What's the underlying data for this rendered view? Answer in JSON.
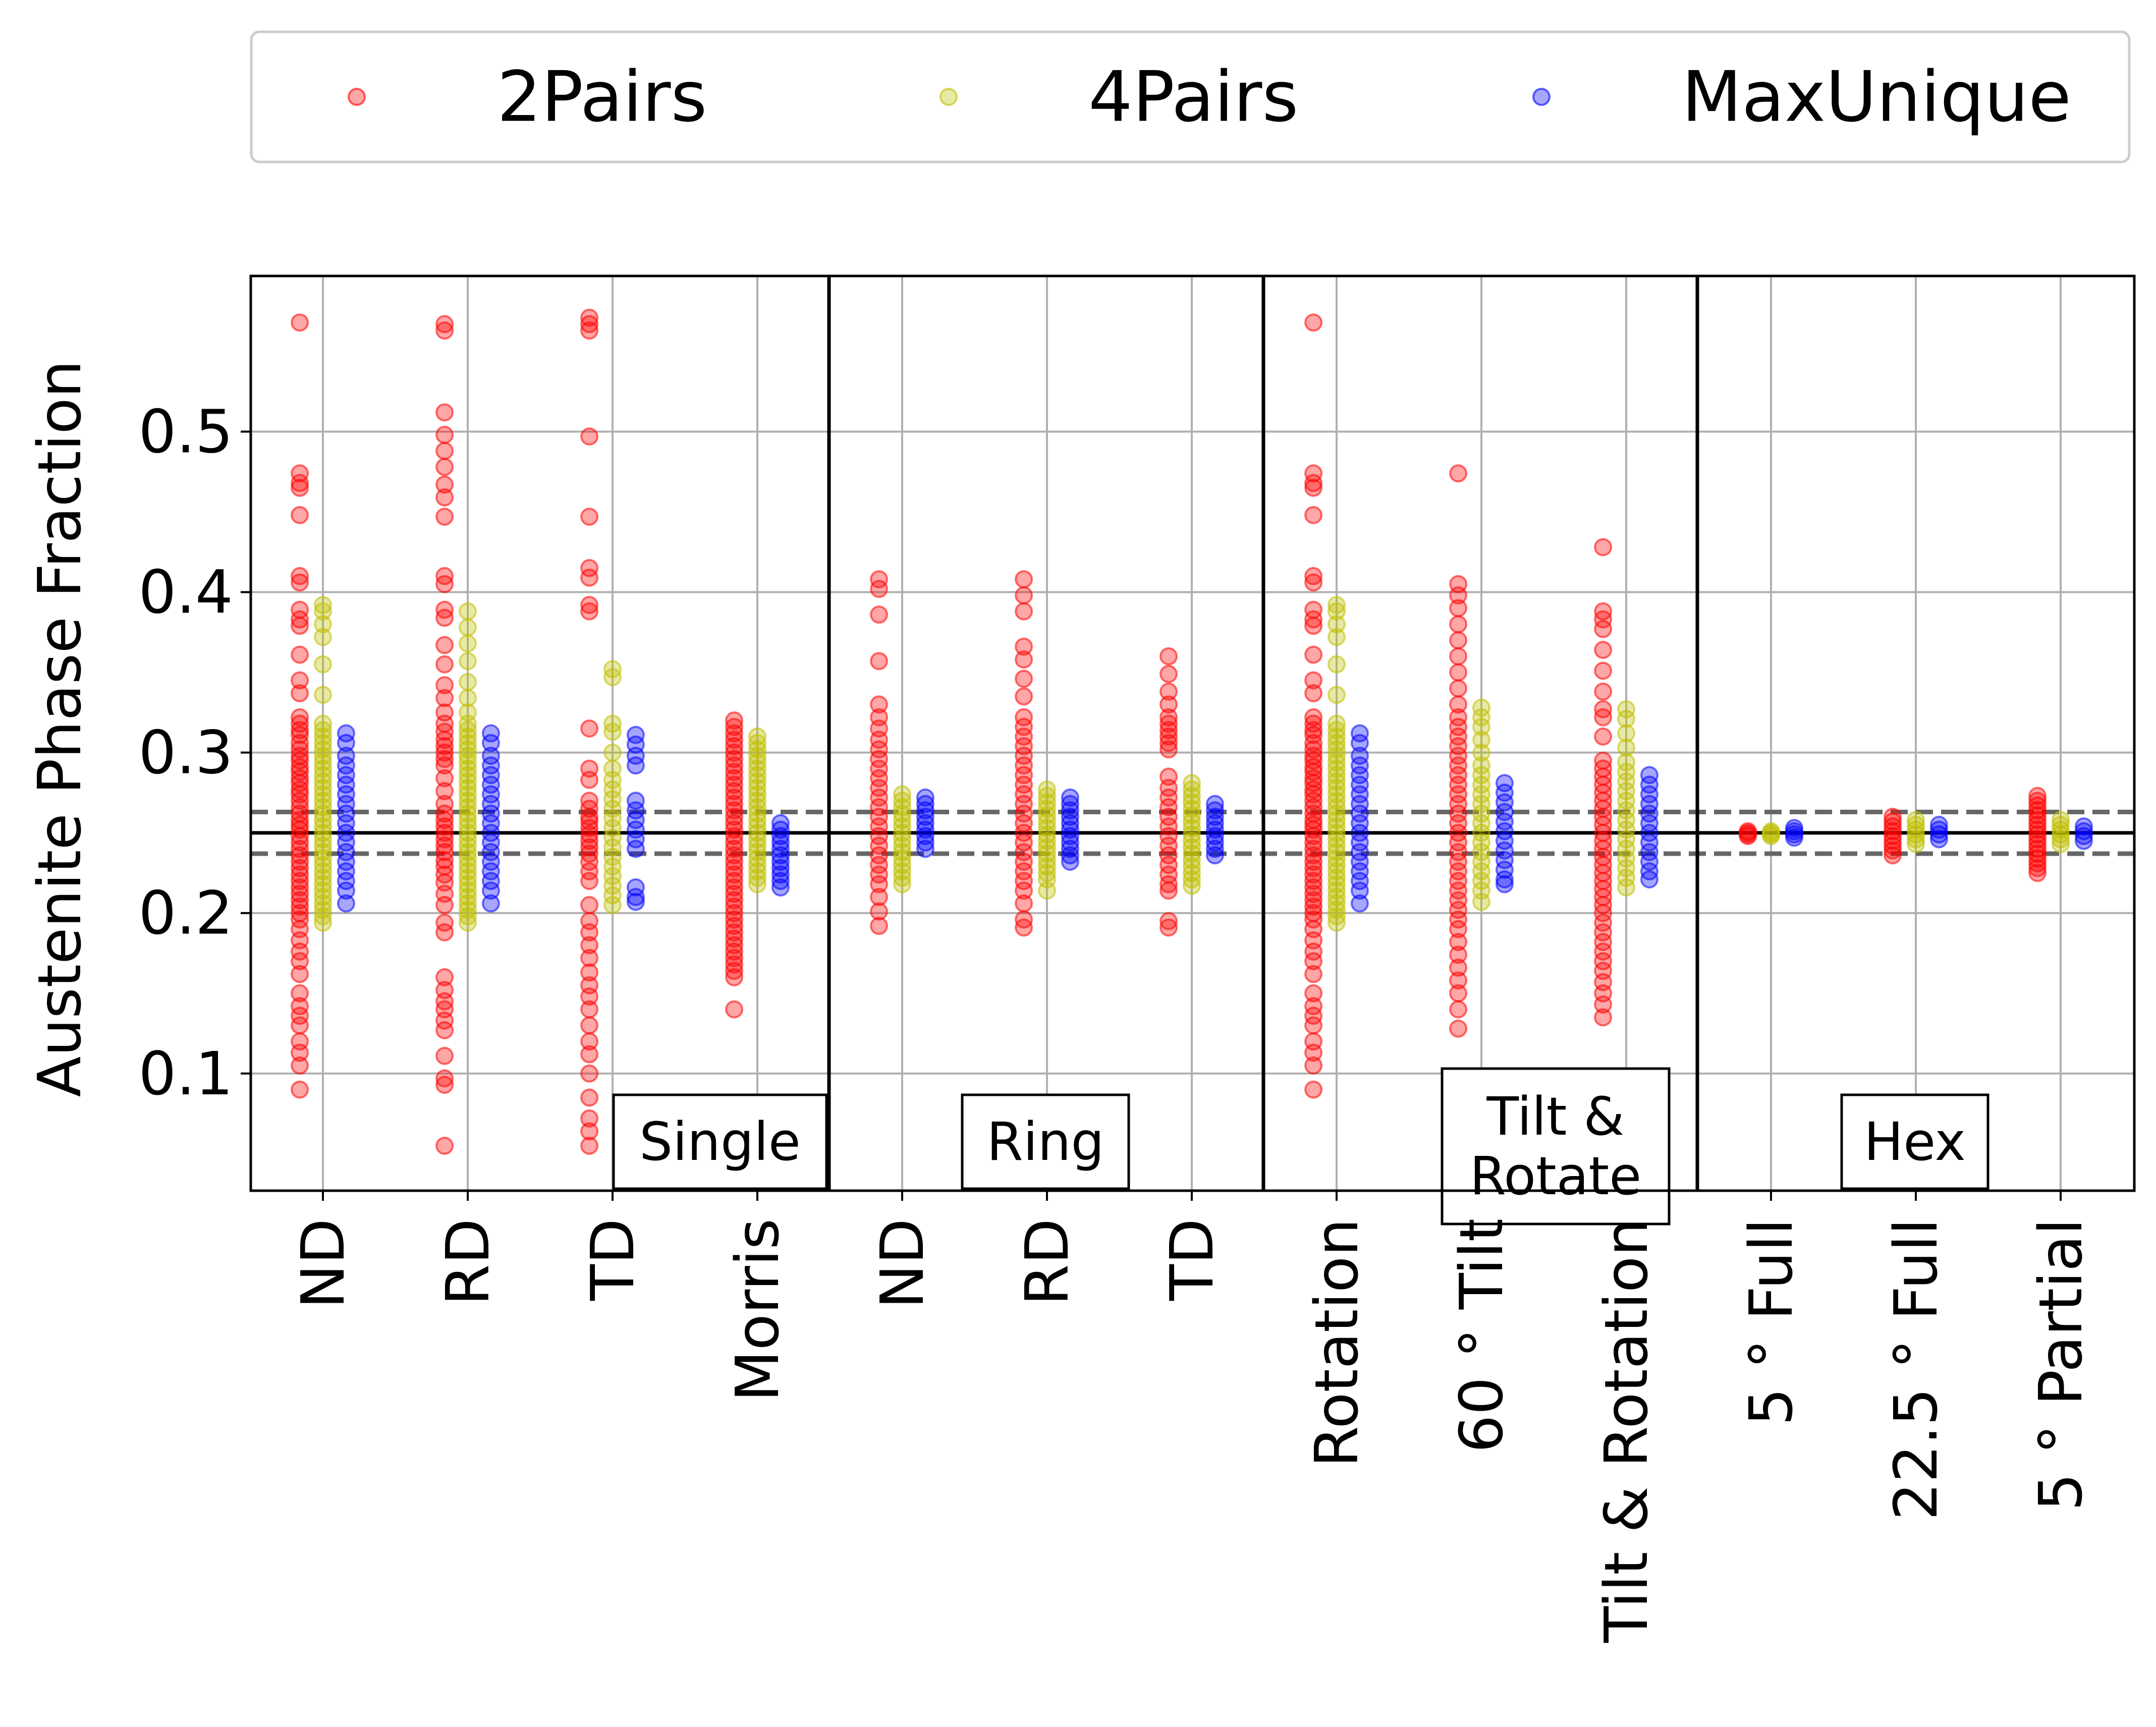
{
  "chart_data": {
    "type": "scatter",
    "ylabel": "Austenite Phase Fraction",
    "xlabel": "",
    "ylim": [
      0.027,
      0.597
    ],
    "yticks": [
      0.1,
      0.2,
      0.3,
      0.4,
      0.5
    ],
    "ytick_labels": [
      "0.1",
      "0.2",
      "0.3",
      "0.4",
      "0.5"
    ],
    "grid": true,
    "legend_position": "top (above plot)",
    "categories": [
      "ND",
      "RD",
      "TD",
      "Morris",
      "ND",
      "RD",
      "TD",
      "Rotation",
      "60$^\\circ$ Tilt",
      "Tilt & Rotation",
      "5$^\\circ$ Full",
      "22.5$^\\circ$ Full",
      "5$^\\circ$ Partial"
    ],
    "category_labels": [
      "ND",
      "RD",
      "TD",
      "Morris",
      "ND",
      "RD",
      "TD",
      "Rotation",
      "60 ° Tilt",
      "Tilt & Rotation",
      "5 ° Full",
      "22.5 ° Full",
      "5 ° Partial"
    ],
    "groups": [
      {
        "label": "Single",
        "categories": [
          0,
          1,
          2,
          3
        ]
      },
      {
        "label": "Ring",
        "categories": [
          4,
          5,
          6
        ]
      },
      {
        "label": "Tilt & Rotate",
        "label_lines": [
          "Tilt &",
          "Rotate"
        ],
        "categories": [
          7,
          8,
          9
        ]
      },
      {
        "label": "Hex",
        "categories": [
          10,
          11,
          12
        ]
      }
    ],
    "reference_lines": [
      {
        "y": 0.25,
        "style": "solid",
        "color": "#000000"
      },
      {
        "y": 0.263,
        "style": "dashed",
        "color": "#666666"
      },
      {
        "y": 0.237,
        "style": "dashed",
        "color": "#666666"
      }
    ],
    "series": [
      {
        "name": "2Pairs",
        "color": "#ff0000",
        "offset": -0.16,
        "points": [
          [
            0.568,
            0.474,
            0.468,
            0.465,
            0.448,
            0.41,
            0.406,
            0.389,
            0.383,
            0.379,
            0.361,
            0.345,
            0.337,
            0.322,
            0.318,
            0.314,
            0.311,
            0.306,
            0.302,
            0.298,
            0.295,
            0.291,
            0.288,
            0.284,
            0.281,
            0.277,
            0.274,
            0.27,
            0.266,
            0.262,
            0.258,
            0.255,
            0.252,
            0.248,
            0.244,
            0.24,
            0.236,
            0.232,
            0.228,
            0.224,
            0.22,
            0.216,
            0.212,
            0.208,
            0.204,
            0.2,
            0.196,
            0.19,
            0.183,
            0.176,
            0.17,
            0.162,
            0.15,
            0.142,
            0.136,
            0.13,
            0.12,
            0.113,
            0.105,
            0.09
          ],
          [
            0.567,
            0.563,
            0.512,
            0.498,
            0.488,
            0.478,
            0.467,
            0.459,
            0.447,
            0.41,
            0.405,
            0.389,
            0.384,
            0.367,
            0.355,
            0.342,
            0.334,
            0.325,
            0.318,
            0.313,
            0.308,
            0.304,
            0.3,
            0.296,
            0.292,
            0.284,
            0.276,
            0.268,
            0.262,
            0.258,
            0.254,
            0.25,
            0.246,
            0.242,
            0.238,
            0.233,
            0.229,
            0.224,
            0.219,
            0.212,
            0.205,
            0.194,
            0.188,
            0.16,
            0.152,
            0.145,
            0.14,
            0.133,
            0.127,
            0.111,
            0.097,
            0.093,
            0.055
          ],
          [
            0.571,
            0.567,
            0.563,
            0.497,
            0.447,
            0.415,
            0.409,
            0.392,
            0.388,
            0.315,
            0.29,
            0.283,
            0.27,
            0.265,
            0.26,
            0.257,
            0.253,
            0.249,
            0.245,
            0.241,
            0.237,
            0.232,
            0.226,
            0.22,
            0.205,
            0.195,
            0.188,
            0.18,
            0.172,
            0.163,
            0.155,
            0.148,
            0.14,
            0.13,
            0.12,
            0.112,
            0.1,
            0.085,
            0.072,
            0.064,
            0.055
          ],
          [
            0.32,
            0.316,
            0.312,
            0.308,
            0.304,
            0.3,
            0.296,
            0.292,
            0.288,
            0.284,
            0.28,
            0.276,
            0.272,
            0.268,
            0.264,
            0.26,
            0.256,
            0.252,
            0.248,
            0.244,
            0.24,
            0.236,
            0.232,
            0.228,
            0.224,
            0.22,
            0.216,
            0.212,
            0.208,
            0.204,
            0.2,
            0.196,
            0.192,
            0.188,
            0.184,
            0.18,
            0.176,
            0.172,
            0.168,
            0.164,
            0.16,
            0.14
          ],
          [
            0.408,
            0.402,
            0.386,
            0.357,
            0.33,
            0.322,
            0.315,
            0.308,
            0.302,
            0.296,
            0.29,
            0.284,
            0.278,
            0.272,
            0.266,
            0.26,
            0.254,
            0.248,
            0.242,
            0.236,
            0.23,
            0.224,
            0.218,
            0.21,
            0.201,
            0.192
          ],
          [
            0.408,
            0.398,
            0.388,
            0.366,
            0.358,
            0.346,
            0.335,
            0.322,
            0.316,
            0.31,
            0.304,
            0.298,
            0.292,
            0.286,
            0.28,
            0.274,
            0.268,
            0.262,
            0.256,
            0.25,
            0.244,
            0.238,
            0.232,
            0.226,
            0.22,
            0.214,
            0.206,
            0.196,
            0.191
          ],
          [
            0.36,
            0.349,
            0.338,
            0.33,
            0.322,
            0.318,
            0.314,
            0.31,
            0.306,
            0.302,
            0.285,
            0.278,
            0.272,
            0.266,
            0.26,
            0.254,
            0.248,
            0.242,
            0.236,
            0.23,
            0.224,
            0.218,
            0.214,
            0.195,
            0.191
          ],
          [
            0.568,
            0.474,
            0.468,
            0.465,
            0.448,
            0.41,
            0.406,
            0.389,
            0.383,
            0.379,
            0.361,
            0.345,
            0.337,
            0.322,
            0.318,
            0.314,
            0.311,
            0.306,
            0.302,
            0.298,
            0.295,
            0.291,
            0.288,
            0.284,
            0.281,
            0.277,
            0.274,
            0.27,
            0.266,
            0.262,
            0.258,
            0.255,
            0.252,
            0.248,
            0.244,
            0.24,
            0.236,
            0.232,
            0.228,
            0.224,
            0.22,
            0.216,
            0.212,
            0.208,
            0.204,
            0.2,
            0.196,
            0.19,
            0.183,
            0.176,
            0.17,
            0.162,
            0.15,
            0.142,
            0.136,
            0.13,
            0.12,
            0.113,
            0.105,
            0.09
          ],
          [
            0.474,
            0.405,
            0.398,
            0.39,
            0.38,
            0.37,
            0.36,
            0.35,
            0.34,
            0.33,
            0.322,
            0.316,
            0.31,
            0.304,
            0.298,
            0.292,
            0.286,
            0.28,
            0.274,
            0.268,
            0.262,
            0.256,
            0.25,
            0.244,
            0.238,
            0.232,
            0.226,
            0.22,
            0.214,
            0.208,
            0.202,
            0.196,
            0.19,
            0.182,
            0.174,
            0.166,
            0.158,
            0.15,
            0.14,
            0.128
          ],
          [
            0.428,
            0.388,
            0.383,
            0.377,
            0.364,
            0.351,
            0.338,
            0.327,
            0.322,
            0.31,
            0.295,
            0.29,
            0.285,
            0.28,
            0.275,
            0.27,
            0.265,
            0.26,
            0.255,
            0.25,
            0.245,
            0.24,
            0.235,
            0.23,
            0.225,
            0.22,
            0.215,
            0.21,
            0.205,
            0.2,
            0.194,
            0.188,
            0.182,
            0.176,
            0.17,
            0.164,
            0.157,
            0.15,
            0.143,
            0.135
          ],
          [
            0.251,
            0.25,
            0.249,
            0.248
          ],
          [
            0.26,
            0.257,
            0.254,
            0.251,
            0.248,
            0.245,
            0.242,
            0.239,
            0.236
          ],
          [
            0.273,
            0.27,
            0.267,
            0.264,
            0.261,
            0.258,
            0.255,
            0.252,
            0.249,
            0.246,
            0.243,
            0.24,
            0.237,
            0.234,
            0.231,
            0.228,
            0.225
          ]
        ]
      },
      {
        "name": "4Pairs",
        "color": "#bfbf00",
        "offset": 0.0,
        "points": [
          [
            0.392,
            0.388,
            0.38,
            0.372,
            0.355,
            0.336,
            0.318,
            0.314,
            0.31,
            0.306,
            0.302,
            0.298,
            0.294,
            0.29,
            0.286,
            0.282,
            0.278,
            0.274,
            0.27,
            0.266,
            0.262,
            0.258,
            0.254,
            0.25,
            0.246,
            0.242,
            0.238,
            0.234,
            0.23,
            0.226,
            0.222,
            0.218,
            0.214,
            0.21,
            0.206,
            0.202,
            0.198,
            0.194
          ],
          [
            0.388,
            0.378,
            0.368,
            0.357,
            0.344,
            0.334,
            0.325,
            0.318,
            0.314,
            0.31,
            0.306,
            0.302,
            0.298,
            0.294,
            0.29,
            0.286,
            0.282,
            0.278,
            0.274,
            0.27,
            0.266,
            0.262,
            0.258,
            0.254,
            0.25,
            0.246,
            0.242,
            0.238,
            0.234,
            0.23,
            0.226,
            0.222,
            0.218,
            0.214,
            0.21,
            0.206,
            0.202,
            0.198,
            0.194
          ],
          [
            0.352,
            0.347,
            0.318,
            0.313,
            0.3,
            0.29,
            0.283,
            0.277,
            0.271,
            0.265,
            0.259,
            0.253,
            0.247,
            0.241,
            0.235,
            0.229,
            0.223,
            0.217,
            0.211,
            0.205
          ],
          [
            0.31,
            0.306,
            0.302,
            0.298,
            0.294,
            0.29,
            0.286,
            0.282,
            0.278,
            0.274,
            0.27,
            0.266,
            0.262,
            0.258,
            0.254,
            0.25,
            0.246,
            0.242,
            0.238,
            0.234,
            0.23,
            0.226,
            0.222,
            0.218
          ],
          [
            0.274,
            0.27,
            0.266,
            0.262,
            0.258,
            0.254,
            0.25,
            0.246,
            0.242,
            0.238,
            0.234,
            0.23,
            0.226,
            0.222,
            0.218
          ],
          [
            0.277,
            0.273,
            0.269,
            0.265,
            0.261,
            0.257,
            0.253,
            0.249,
            0.245,
            0.241,
            0.237,
            0.233,
            0.229,
            0.225,
            0.221,
            0.214
          ],
          [
            0.281,
            0.277,
            0.273,
            0.269,
            0.265,
            0.261,
            0.257,
            0.253,
            0.249,
            0.245,
            0.241,
            0.237,
            0.233,
            0.229,
            0.225,
            0.221,
            0.217
          ],
          [
            0.392,
            0.388,
            0.38,
            0.372,
            0.355,
            0.336,
            0.318,
            0.314,
            0.31,
            0.306,
            0.302,
            0.298,
            0.294,
            0.29,
            0.286,
            0.282,
            0.278,
            0.274,
            0.27,
            0.266,
            0.262,
            0.258,
            0.254,
            0.25,
            0.246,
            0.242,
            0.238,
            0.234,
            0.23,
            0.226,
            0.222,
            0.218,
            0.214,
            0.21,
            0.206,
            0.202,
            0.198,
            0.194
          ],
          [
            0.328,
            0.322,
            0.316,
            0.308,
            0.3,
            0.292,
            0.286,
            0.28,
            0.274,
            0.268,
            0.262,
            0.256,
            0.25,
            0.244,
            0.238,
            0.232,
            0.226,
            0.22,
            0.214,
            0.207
          ],
          [
            0.327,
            0.321,
            0.312,
            0.303,
            0.294,
            0.288,
            0.282,
            0.276,
            0.27,
            0.264,
            0.258,
            0.252,
            0.246,
            0.24,
            0.234,
            0.228,
            0.222,
            0.216
          ],
          [
            0.251,
            0.25,
            0.249,
            0.248
          ],
          [
            0.258,
            0.255,
            0.252,
            0.249,
            0.246,
            0.243
          ],
          [
            0.258,
            0.255,
            0.252,
            0.249,
            0.246,
            0.243
          ]
        ]
      },
      {
        "name": "MaxUnique",
        "color": "#0000ff",
        "offset": 0.16,
        "points": [
          [
            0.312,
            0.306,
            0.298,
            0.292,
            0.286,
            0.28,
            0.274,
            0.268,
            0.262,
            0.256,
            0.25,
            0.244,
            0.238,
            0.232,
            0.226,
            0.22,
            0.214,
            0.206
          ],
          [
            0.312,
            0.306,
            0.298,
            0.292,
            0.286,
            0.28,
            0.274,
            0.268,
            0.262,
            0.256,
            0.25,
            0.244,
            0.238,
            0.232,
            0.226,
            0.22,
            0.214,
            0.206
          ],
          [
            0.311,
            0.305,
            0.298,
            0.292,
            0.27,
            0.264,
            0.258,
            0.252,
            0.246,
            0.24,
            0.216,
            0.21,
            0.207
          ],
          [
            0.256,
            0.252,
            0.248,
            0.244,
            0.24,
            0.236,
            0.232,
            0.228,
            0.224,
            0.22,
            0.216
          ],
          [
            0.272,
            0.268,
            0.264,
            0.26,
            0.256,
            0.252,
            0.248,
            0.244,
            0.24
          ],
          [
            0.272,
            0.268,
            0.264,
            0.26,
            0.256,
            0.252,
            0.248,
            0.244,
            0.24,
            0.236,
            0.232
          ],
          [
            0.268,
            0.264,
            0.26,
            0.256,
            0.252,
            0.248,
            0.244,
            0.24,
            0.236
          ],
          [
            0.312,
            0.306,
            0.298,
            0.292,
            0.286,
            0.28,
            0.274,
            0.268,
            0.262,
            0.256,
            0.25,
            0.244,
            0.238,
            0.232,
            0.226,
            0.22,
            0.214,
            0.206
          ],
          [
            0.281,
            0.275,
            0.269,
            0.263,
            0.257,
            0.251,
            0.245,
            0.239,
            0.233,
            0.227,
            0.221,
            0.218
          ],
          [
            0.286,
            0.28,
            0.274,
            0.268,
            0.262,
            0.256,
            0.25,
            0.244,
            0.238,
            0.232,
            0.226,
            0.221
          ],
          [
            0.253,
            0.251,
            0.249,
            0.247
          ],
          [
            0.255,
            0.252,
            0.249,
            0.246
          ],
          [
            0.254,
            0.251,
            0.248,
            0.245
          ]
        ]
      }
    ]
  }
}
